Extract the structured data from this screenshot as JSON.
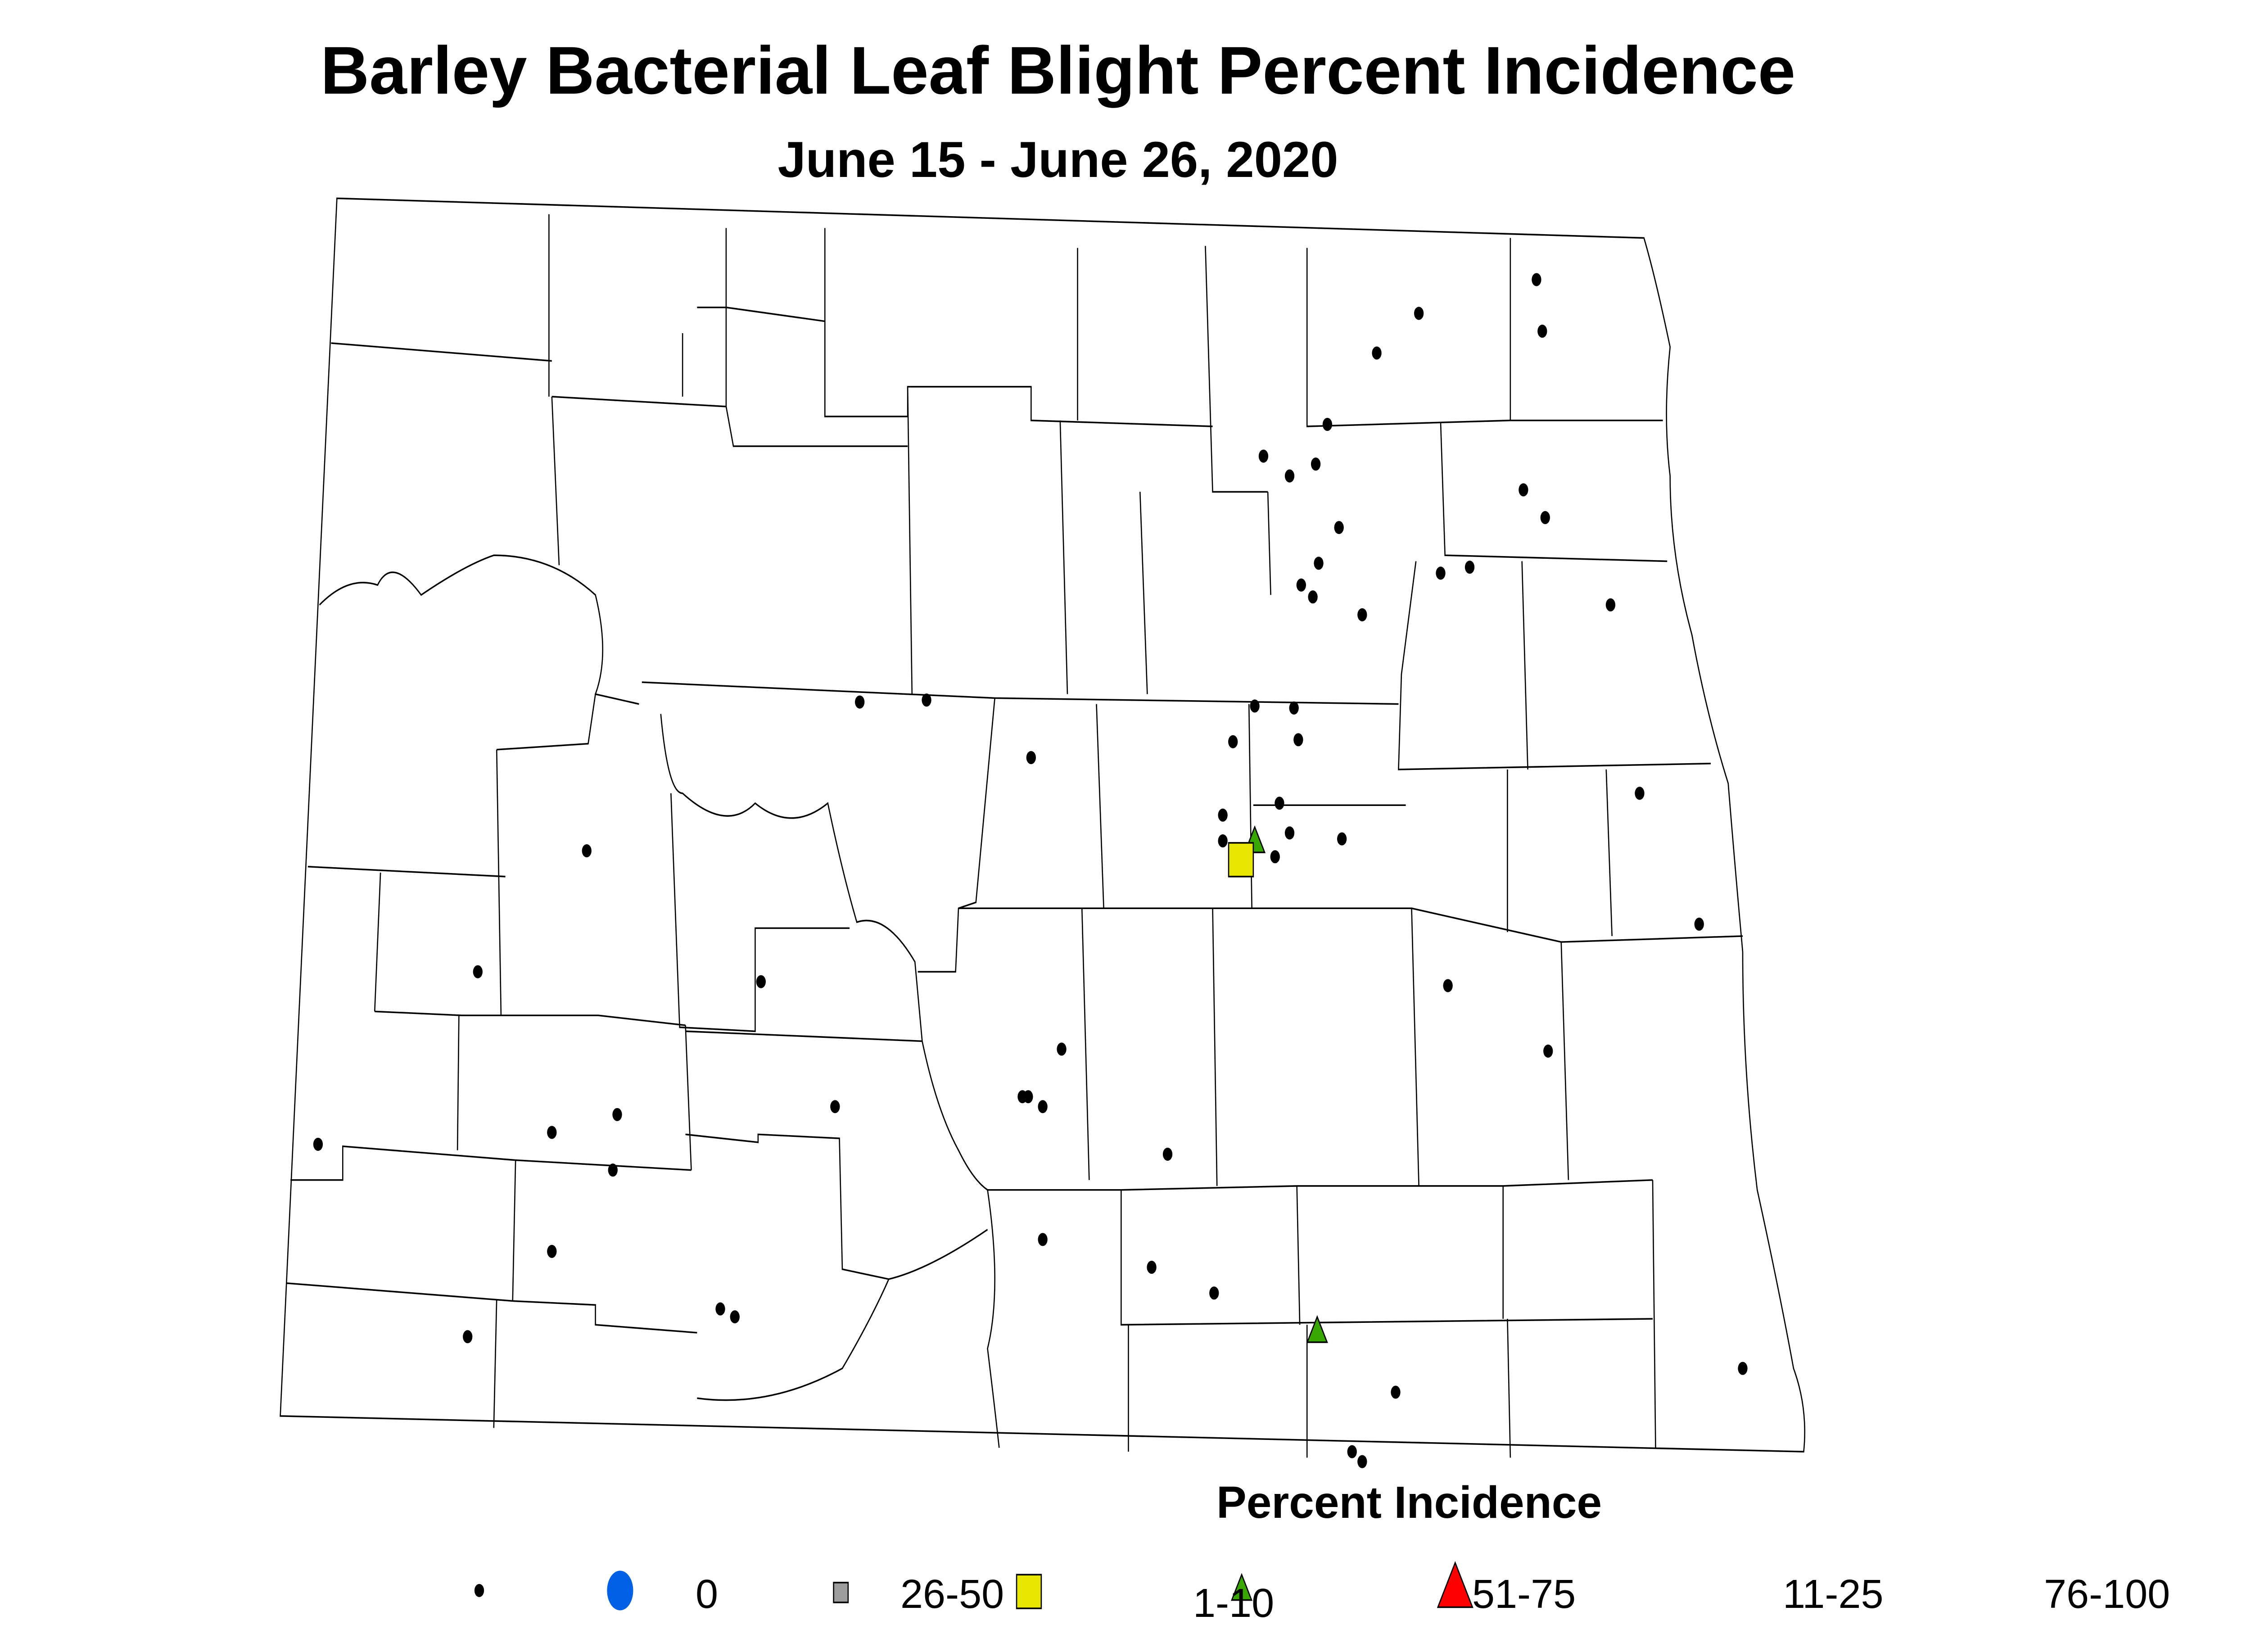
{
  "title": "Barley Bacterial Leaf Blight Percent Incidence",
  "subtitle": "June 15 - June 26, 2020",
  "legend": {
    "title": "Percent Incidence",
    "items": [
      {
        "label": "0",
        "symbol": "small-dot",
        "color": "#000000"
      },
      {
        "label": "26-50",
        "symbol": "circle",
        "color": "#0060E6"
      },
      {
        "label": "1-10",
        "symbol": "small-square",
        "color": "#9C9C9C"
      },
      {
        "label": "51-75",
        "symbol": "square",
        "color": "#E6E600"
      },
      {
        "label": "11-25",
        "symbol": "small-triangle",
        "color": "#38A800"
      },
      {
        "label": "76-100",
        "symbol": "large-triangle",
        "color": "#FF0000"
      }
    ]
  },
  "map": {
    "region": "North Dakota counties",
    "boundary_color": "#000000"
  }
}
